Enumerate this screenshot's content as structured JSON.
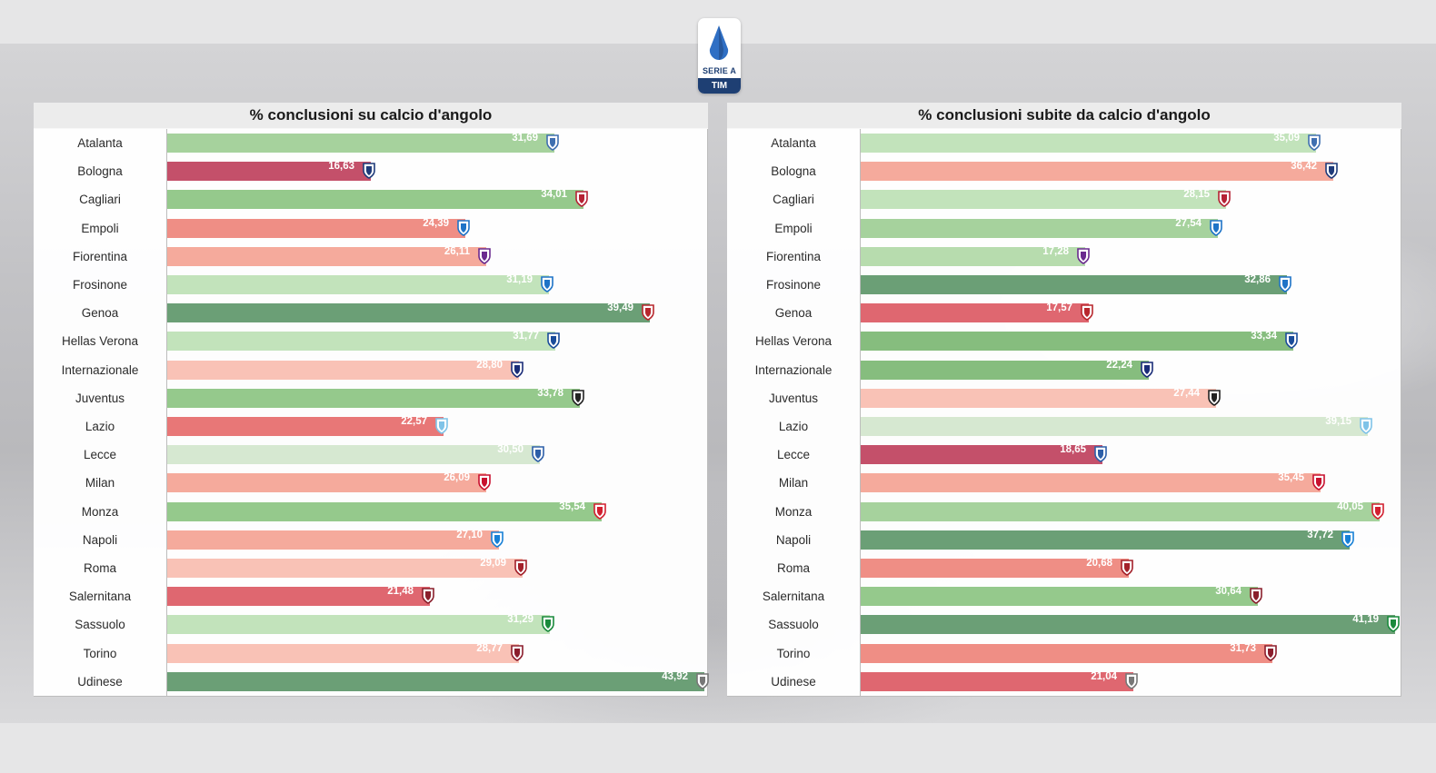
{
  "league": {
    "name": "SERIE A",
    "sponsor": "TIM"
  },
  "colors": {
    "dark_green": "#6b9f76",
    "mid_green": "#95c98c",
    "light_green": "#c2e3bb",
    "pale_green": "#d6e8d1",
    "dark_red": "#c4506a",
    "red": "#df6770",
    "salmon": "#ef8e85",
    "light_salmon": "#f5aa9c",
    "pale_salmon": "#f9c2b6"
  },
  "chart_data": [
    {
      "type": "bar",
      "orientation": "horizontal",
      "title": "% conclusioni su calcio d'angolo",
      "xlim": [
        0,
        44
      ],
      "value_labels": [
        "31,69",
        "16,63",
        "34,01",
        "24,39",
        "26,11",
        "31,19",
        "39,49",
        "31,77",
        "28,80",
        "33,78",
        "22,57",
        "30,50",
        "26,09",
        "35,54",
        "27,10",
        "29,09",
        "21,48",
        "31,29",
        "28,77",
        "43,92"
      ],
      "rows": [
        {
          "team": "Atalanta",
          "value": 31.69,
          "color": "#a6d29d",
          "crest": "#3f6fb0"
        },
        {
          "team": "Bologna",
          "value": 16.63,
          "color": "#c4506a",
          "crest": "#1f3b7a"
        },
        {
          "team": "Cagliari",
          "value": 34.01,
          "color": "#95c98c",
          "crest": "#b52234"
        },
        {
          "team": "Empoli",
          "value": 24.39,
          "color": "#ef8e85",
          "crest": "#1e73c7"
        },
        {
          "team": "Fiorentina",
          "value": 26.11,
          "color": "#f5aa9c",
          "crest": "#6a2a8f"
        },
        {
          "team": "Frosinone",
          "value": 31.19,
          "color": "#c2e3bb",
          "crest": "#1e73c7"
        },
        {
          "team": "Genoa",
          "value": 39.49,
          "color": "#6b9f76",
          "crest": "#b8272d"
        },
        {
          "team": "Hellas Verona",
          "value": 31.77,
          "color": "#c2e3bb",
          "crest": "#1a4c9a"
        },
        {
          "team": "Internazionale",
          "value": 28.8,
          "color": "#f9c2b6",
          "crest": "#1a2c78"
        },
        {
          "team": "Juventus",
          "value": 33.78,
          "color": "#95c98c",
          "crest": "#222222"
        },
        {
          "team": "Lazio",
          "value": 22.57,
          "color": "#e87777",
          "crest": "#7fc3e8"
        },
        {
          "team": "Lecce",
          "value": 30.5,
          "color": "#d6e8d1",
          "crest": "#2d5fa8"
        },
        {
          "team": "Milan",
          "value": 26.09,
          "color": "#f5aa9c",
          "crest": "#c8102e"
        },
        {
          "team": "Monza",
          "value": 35.54,
          "color": "#95c98c",
          "crest": "#d21f2f"
        },
        {
          "team": "Napoli",
          "value": 27.1,
          "color": "#f5aa9c",
          "crest": "#1780d6"
        },
        {
          "team": "Roma",
          "value": 29.09,
          "color": "#f9c2b6",
          "crest": "#a3202a"
        },
        {
          "team": "Salernitana",
          "value": 21.48,
          "color": "#df6770",
          "crest": "#8a1f2c"
        },
        {
          "team": "Sassuolo",
          "value": 31.29,
          "color": "#c2e3bb",
          "crest": "#1a8a3c"
        },
        {
          "team": "Torino",
          "value": 28.77,
          "color": "#f9c2b6",
          "crest": "#8b1d2c"
        },
        {
          "team": "Udinese",
          "value": 43.92,
          "color": "#6b9f76",
          "crest": "#777777"
        }
      ]
    },
    {
      "type": "bar",
      "orientation": "horizontal",
      "title": "% conclusioni subite da calcio d'angolo",
      "xlim": [
        0,
        41.5
      ],
      "value_labels": [
        "35,09",
        "36,42",
        "28,15",
        "27,54",
        "17,28",
        "32,86",
        "17,57",
        "33,34",
        "22,24",
        "27,44",
        "39,15",
        "18,65",
        "35,45",
        "40,05",
        "37,72",
        "20,68",
        "30,64",
        "41,19",
        "31,73",
        "21,04"
      ],
      "rows": [
        {
          "team": "Atalanta",
          "value": 35.09,
          "color": "#c2e3bb",
          "crest": "#3f6fb0"
        },
        {
          "team": "Bologna",
          "value": 36.42,
          "color": "#f5aa9c",
          "crest": "#1f3b7a"
        },
        {
          "team": "Cagliari",
          "value": 28.15,
          "color": "#c2e3bb",
          "crest": "#b52234"
        },
        {
          "team": "Empoli",
          "value": 27.54,
          "color": "#a6d29d",
          "crest": "#1e73c7"
        },
        {
          "team": "Fiorentina",
          "value": 17.28,
          "color": "#b7dcae",
          "crest": "#6a2a8f"
        },
        {
          "team": "Frosinone",
          "value": 32.86,
          "color": "#6b9f76",
          "crest": "#1e73c7"
        },
        {
          "team": "Genoa",
          "value": 17.57,
          "color": "#df6770",
          "crest": "#b8272d"
        },
        {
          "team": "Hellas Verona",
          "value": 33.34,
          "color": "#86bd7e",
          "crest": "#1a4c9a"
        },
        {
          "team": "Internazionale",
          "value": 22.24,
          "color": "#86bd7e",
          "crest": "#1a2c78"
        },
        {
          "team": "Juventus",
          "value": 27.44,
          "color": "#f9c2b6",
          "crest": "#222222"
        },
        {
          "team": "Lazio",
          "value": 39.15,
          "color": "#d6e8d1",
          "crest": "#7fc3e8"
        },
        {
          "team": "Lecce",
          "value": 18.65,
          "color": "#c4506a",
          "crest": "#2d5fa8"
        },
        {
          "team": "Milan",
          "value": 35.45,
          "color": "#f5aa9c",
          "crest": "#c8102e"
        },
        {
          "team": "Monza",
          "value": 40.05,
          "color": "#a6d29d",
          "crest": "#d21f2f"
        },
        {
          "team": "Napoli",
          "value": 37.72,
          "color": "#6b9f76",
          "crest": "#1780d6"
        },
        {
          "team": "Roma",
          "value": 20.68,
          "color": "#ef8e85",
          "crest": "#a3202a"
        },
        {
          "team": "Salernitana",
          "value": 30.64,
          "color": "#95c98c",
          "crest": "#8a1f2c"
        },
        {
          "team": "Sassuolo",
          "value": 41.19,
          "color": "#6b9f76",
          "crest": "#1a8a3c"
        },
        {
          "team": "Torino",
          "value": 31.73,
          "color": "#ef8e85",
          "crest": "#8b1d2c"
        },
        {
          "team": "Udinese",
          "value": 21.04,
          "color": "#df6770",
          "crest": "#777777"
        }
      ]
    }
  ]
}
